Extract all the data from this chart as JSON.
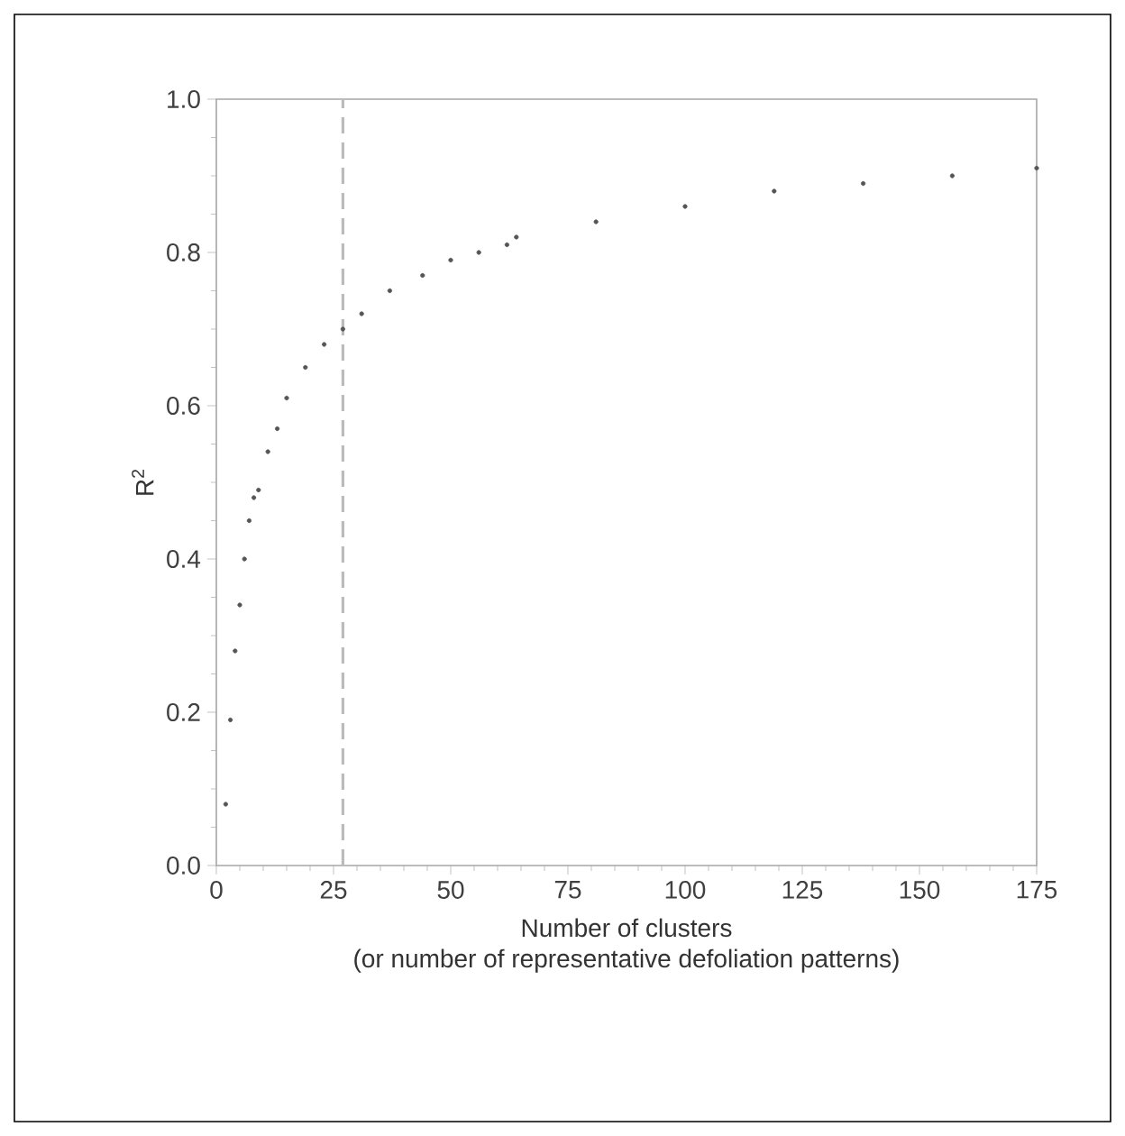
{
  "chart_data": {
    "type": "scatter",
    "xlabel": "Number of clusters\n(or number of representative defoliation patterns)",
    "ylabel": "R$^{2}$",
    "x": [
      2,
      3,
      4,
      5,
      6,
      7,
      8,
      9,
      11,
      13,
      15,
      19,
      23,
      27,
      31,
      37,
      44,
      50,
      56,
      62,
      64,
      81,
      100,
      119,
      138,
      157,
      175
    ],
    "values": [
      0.08,
      0.19,
      0.28,
      0.34,
      0.4,
      0.45,
      0.48,
      0.49,
      0.54,
      0.57,
      0.61,
      0.65,
      0.68,
      0.7,
      0.72,
      0.75,
      0.77,
      0.79,
      0.8,
      0.81,
      0.82,
      0.84,
      0.86,
      0.88,
      0.89,
      0.9,
      0.91
    ],
    "color": "#555555",
    "xlim": [
      0,
      175
    ],
    "xticks": [
      0,
      25,
      50,
      75,
      100,
      125,
      150,
      175
    ],
    "ylim": [
      0,
      1
    ],
    "yticks": [
      {
        "value": 0,
        "label": "0.0"
      },
      {
        "value": 0.2,
        "label": "0.2"
      },
      {
        "value": 0.4,
        "label": "0.4"
      },
      {
        "value": 0.6,
        "label": "0.6"
      },
      {
        "value": 0.8,
        "label": "0.8"
      },
      {
        "value": 1,
        "label": "1.0"
      }
    ],
    "ref_lines": [
      {
        "axis": "x",
        "value": 27,
        "color": "#bbbbbb",
        "line_style": "dashed"
      }
    ],
    "grid": false
  }
}
